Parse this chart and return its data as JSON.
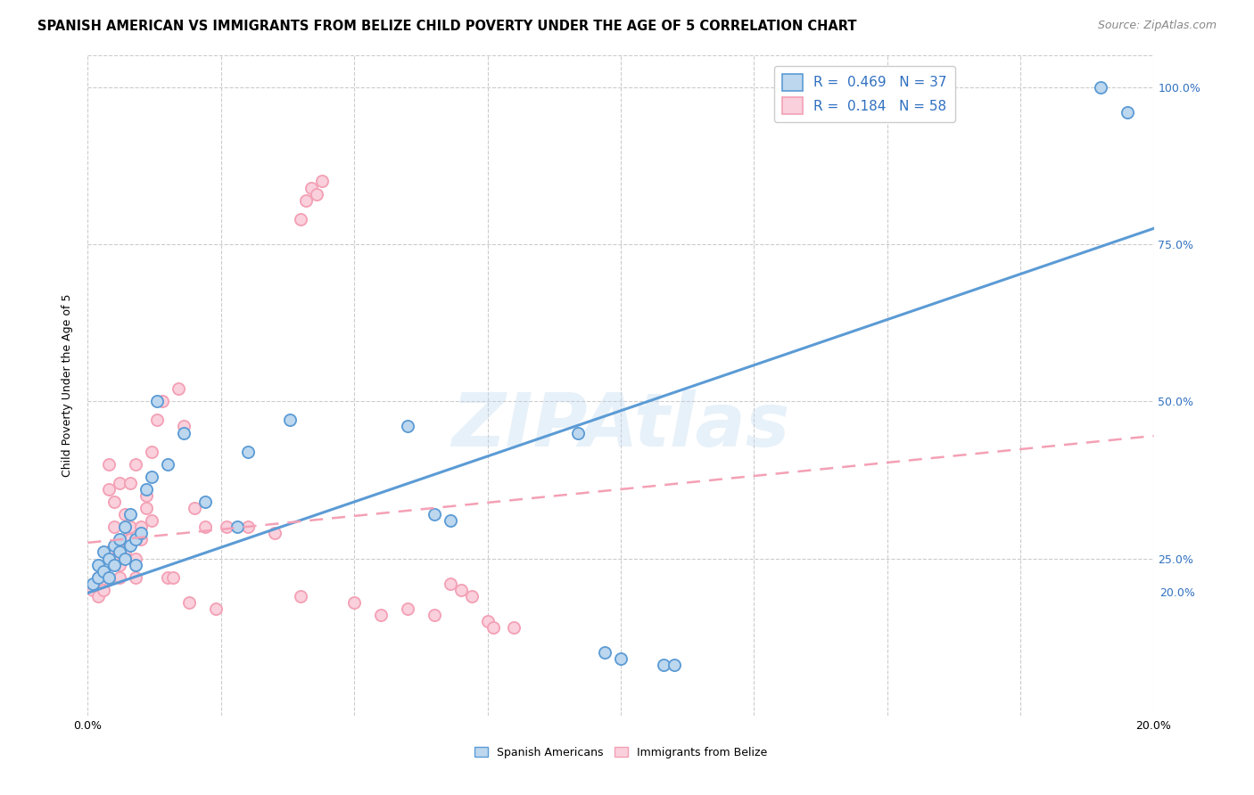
{
  "title": "SPANISH AMERICAN VS IMMIGRANTS FROM BELIZE CHILD POVERTY UNDER THE AGE OF 5 CORRELATION CHART",
  "source": "Source: ZipAtlas.com",
  "ylabel": "Child Poverty Under the Age of 5",
  "watermark": "ZIPAtlas",
  "xlim": [
    0.0,
    0.2
  ],
  "ylim": [
    0.0,
    1.05
  ],
  "grid_color": "#cccccc",
  "background_color": "#ffffff",
  "blue_color": "#5b9bd5",
  "blue_fill": "#bdd7ee",
  "pink_color": "#f4a0b5",
  "pink_fill": "#f9d0dc",
  "R_blue": 0.469,
  "N_blue": 37,
  "R_pink": 0.184,
  "N_pink": 58,
  "legend_label_blue": "Spanish Americans",
  "legend_label_pink": "Immigrants from Belize",
  "blue_scatter_x": [
    0.001,
    0.002,
    0.002,
    0.003,
    0.003,
    0.004,
    0.004,
    0.005,
    0.005,
    0.006,
    0.006,
    0.007,
    0.007,
    0.008,
    0.008,
    0.009,
    0.009,
    0.01,
    0.011,
    0.012,
    0.013,
    0.015,
    0.018,
    0.022,
    0.028,
    0.03,
    0.038,
    0.06,
    0.065,
    0.068,
    0.092,
    0.097,
    0.1,
    0.108,
    0.11,
    0.19,
    0.195
  ],
  "blue_scatter_y": [
    0.21,
    0.22,
    0.24,
    0.23,
    0.26,
    0.22,
    0.25,
    0.24,
    0.27,
    0.26,
    0.28,
    0.25,
    0.3,
    0.27,
    0.32,
    0.28,
    0.24,
    0.29,
    0.36,
    0.38,
    0.5,
    0.4,
    0.45,
    0.34,
    0.3,
    0.42,
    0.47,
    0.46,
    0.32,
    0.31,
    0.45,
    0.1,
    0.09,
    0.08,
    0.08,
    1.0,
    0.96
  ],
  "pink_scatter_x": [
    0.001,
    0.002,
    0.002,
    0.003,
    0.003,
    0.004,
    0.004,
    0.004,
    0.005,
    0.005,
    0.005,
    0.006,
    0.006,
    0.006,
    0.007,
    0.007,
    0.007,
    0.008,
    0.008,
    0.008,
    0.009,
    0.009,
    0.009,
    0.01,
    0.01,
    0.011,
    0.011,
    0.012,
    0.012,
    0.013,
    0.014,
    0.015,
    0.016,
    0.017,
    0.018,
    0.019,
    0.02,
    0.022,
    0.024,
    0.026,
    0.03,
    0.035,
    0.04,
    0.04,
    0.041,
    0.042,
    0.043,
    0.044,
    0.05,
    0.055,
    0.06,
    0.065,
    0.068,
    0.07,
    0.072,
    0.075,
    0.076,
    0.08
  ],
  "pink_scatter_y": [
    0.2,
    0.19,
    0.22,
    0.21,
    0.2,
    0.36,
    0.4,
    0.26,
    0.3,
    0.25,
    0.34,
    0.37,
    0.22,
    0.24,
    0.28,
    0.26,
    0.32,
    0.3,
    0.28,
    0.37,
    0.25,
    0.4,
    0.22,
    0.28,
    0.3,
    0.33,
    0.35,
    0.42,
    0.31,
    0.47,
    0.5,
    0.22,
    0.22,
    0.52,
    0.46,
    0.18,
    0.33,
    0.3,
    0.17,
    0.3,
    0.3,
    0.29,
    0.19,
    0.79,
    0.82,
    0.84,
    0.83,
    0.85,
    0.18,
    0.16,
    0.17,
    0.16,
    0.21,
    0.2,
    0.19,
    0.15,
    0.14,
    0.14
  ],
  "blue_line_x0": 0.0,
  "blue_line_x1": 0.2,
  "blue_line_y0": 0.195,
  "blue_line_y1": 0.775,
  "pink_line_x0": 0.0,
  "pink_line_x1": 0.2,
  "pink_line_y0": 0.275,
  "pink_line_y1": 0.445,
  "yticks": [
    0.25,
    0.5,
    0.75,
    1.0
  ],
  "ytick_right_labels": [
    "25.0%",
    "50.0%",
    "75.0%",
    "100.0%"
  ],
  "ytick_bottom_label": "20.0%",
  "ytick_bottom_y": 0.195,
  "xtick_positions": [
    0.0,
    0.025,
    0.05,
    0.075,
    0.1,
    0.125,
    0.15,
    0.175,
    0.2
  ],
  "title_fontsize": 10.5,
  "source_fontsize": 9,
  "axis_label_fontsize": 9,
  "tick_fontsize": 9,
  "legend_fontsize": 11,
  "marker_size": 90
}
